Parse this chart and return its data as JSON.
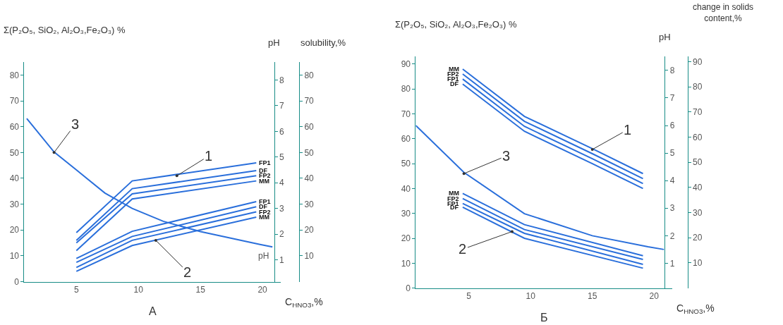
{
  "chart_data": [
    {
      "type": "line",
      "title": "А",
      "xlabel": "C$_{HNO3}$,%",
      "ylabel": "Σ(P₂O₅, SiO₂, Al₂O₃,Fe₂O₃) %",
      "y2label": "pH",
      "y3label": "solubility,%",
      "xlim": [
        0.8,
        21.5
      ],
      "xticks": [
        5,
        10,
        15,
        20
      ],
      "ylim": [
        0,
        85
      ],
      "yticks": [
        0,
        10,
        20,
        30,
        40,
        50,
        60,
        70,
        80
      ],
      "y2lim": [
        0.15,
        8.7
      ],
      "y2ticks": [
        1,
        2,
        3,
        4,
        5,
        6,
        7,
        8
      ],
      "y3lim": [
        0,
        85
      ],
      "y3ticks": [
        10,
        20,
        30,
        40,
        50,
        60,
        70,
        80
      ],
      "series": [
        {
          "name": "FP1",
          "color": "#2a6fdb",
          "x": [
            5,
            9.5,
            19.5
          ],
          "values": [
            19,
            39,
            46
          ]
        },
        {
          "name": "DF",
          "color": "#2a6fdb",
          "x": [
            5,
            9.5,
            19.5
          ],
          "values": [
            16,
            36,
            43
          ]
        },
        {
          "name": "FP2",
          "color": "#2a6fdb",
          "x": [
            5,
            9.5,
            19.5
          ],
          "values": [
            15,
            34,
            41
          ]
        },
        {
          "name": "MM",
          "color": "#2a6fdb",
          "x": [
            5,
            9.5,
            19.5
          ],
          "values": [
            12,
            32,
            39
          ]
        },
        {
          "name": "FP1",
          "color": "#2a6fdb",
          "x": [
            5,
            9.5,
            19.5
          ],
          "values": [
            9,
            19.5,
            31
          ]
        },
        {
          "name": "DF",
          "color": "#2a6fdb",
          "x": [
            5,
            9.5,
            19.5
          ],
          "values": [
            7.5,
            17.5,
            29
          ]
        },
        {
          "name": "FP2",
          "color": "#2a6fdb",
          "x": [
            5,
            9.5,
            19.5
          ],
          "values": [
            5.5,
            16,
            27
          ]
        },
        {
          "name": "MM",
          "color": "#2a6fdb",
          "x": [
            5,
            9.5,
            19.5
          ],
          "values": [
            4,
            14,
            25
          ]
        },
        {
          "color": "#2a6fdb",
          "axis": "y2",
          "x": [
            1,
            3.2,
            5,
            7.3,
            9.5,
            12,
            15,
            19.8,
            20.8
          ],
          "values": [
            6.5,
            5.2,
            4.5,
            3.6,
            3.0,
            2.5,
            2.1,
            1.6,
            1.5
          ]
        }
      ],
      "annotations": [
        {
          "text": "1",
          "x": 13.1,
          "y": 41
        },
        {
          "text": "2",
          "x": 11.4,
          "y": 16
        },
        {
          "text": "3",
          "x": 3.2,
          "y": 50
        },
        "pH"
      ]
    },
    {
      "type": "line",
      "title": "Б",
      "xlabel": "C$_{HNO3}$,%",
      "ylabel": "Σ(P₂O₅, SiO₂, Al₂O₃,Fe₂O₃) %",
      "y2label": "pH",
      "y3label": "change in solids content,%",
      "xlim": [
        0.7,
        21.5
      ],
      "xticks": [
        5,
        10,
        15,
        20
      ],
      "ylim": [
        0,
        93
      ],
      "yticks": [
        0,
        10,
        20,
        30,
        40,
        50,
        60,
        70,
        80,
        90
      ],
      "y2lim": [
        0.1,
        8.5
      ],
      "y2ticks": [
        1,
        2,
        3,
        4,
        5,
        6,
        7,
        8
      ],
      "y3lim": [
        0,
        92
      ],
      "y3ticks": [
        10,
        20,
        30,
        40,
        50,
        60,
        70,
        80,
        90
      ],
      "series": [
        {
          "name": "MM",
          "color": "#2a6fdb",
          "x": [
            4.5,
            9.5,
            15,
            19.1
          ],
          "values": [
            88,
            69,
            56,
            46
          ]
        },
        {
          "name": "FP2",
          "color": "#2a6fdb",
          "x": [
            4.5,
            9.5,
            15,
            19.1
          ],
          "values": [
            86,
            67,
            54,
            44
          ]
        },
        {
          "name": "FP1",
          "color": "#2a6fdb",
          "x": [
            4.5,
            9.5,
            15,
            19.1
          ],
          "values": [
            84,
            65,
            52,
            42
          ]
        },
        {
          "name": "DF",
          "color": "#2a6fdb",
          "x": [
            4.5,
            9.5,
            15,
            19.1
          ],
          "values": [
            82,
            63,
            50,
            40
          ]
        },
        {
          "name": "MM",
          "color": "#2a6fdb",
          "x": [
            4.5,
            9.5,
            19.1
          ],
          "values": [
            38,
            25.5,
            13
          ]
        },
        {
          "name": "FP2",
          "color": "#2a6fdb",
          "x": [
            4.5,
            9.5,
            19.1
          ],
          "values": [
            36,
            23.5,
            11.5
          ]
        },
        {
          "name": "FP1",
          "color": "#2a6fdb",
          "x": [
            4.5,
            9.5,
            19.1
          ],
          "values": [
            34,
            22,
            9.5
          ]
        },
        {
          "name": "DF",
          "color": "#2a6fdb",
          "x": [
            4.5,
            9.5,
            19.1
          ],
          "values": [
            32.5,
            20,
            8
          ]
        },
        {
          "color": "#2a6fdb",
          "axis": "y2",
          "x": [
            0.7,
            4.6,
            9.5,
            15,
            19.5,
            20.8
          ],
          "values": [
            6.0,
            4.3,
            2.8,
            2.0,
            1.6,
            1.5
          ]
        }
      ],
      "annotations": [
        {
          "text": "1",
          "x": 15,
          "y": 55.7
        },
        {
          "text": "2",
          "x": 8.5,
          "y": 22.7
        },
        {
          "text": "3",
          "x": 4.6,
          "y": 46
        }
      ]
    }
  ]
}
